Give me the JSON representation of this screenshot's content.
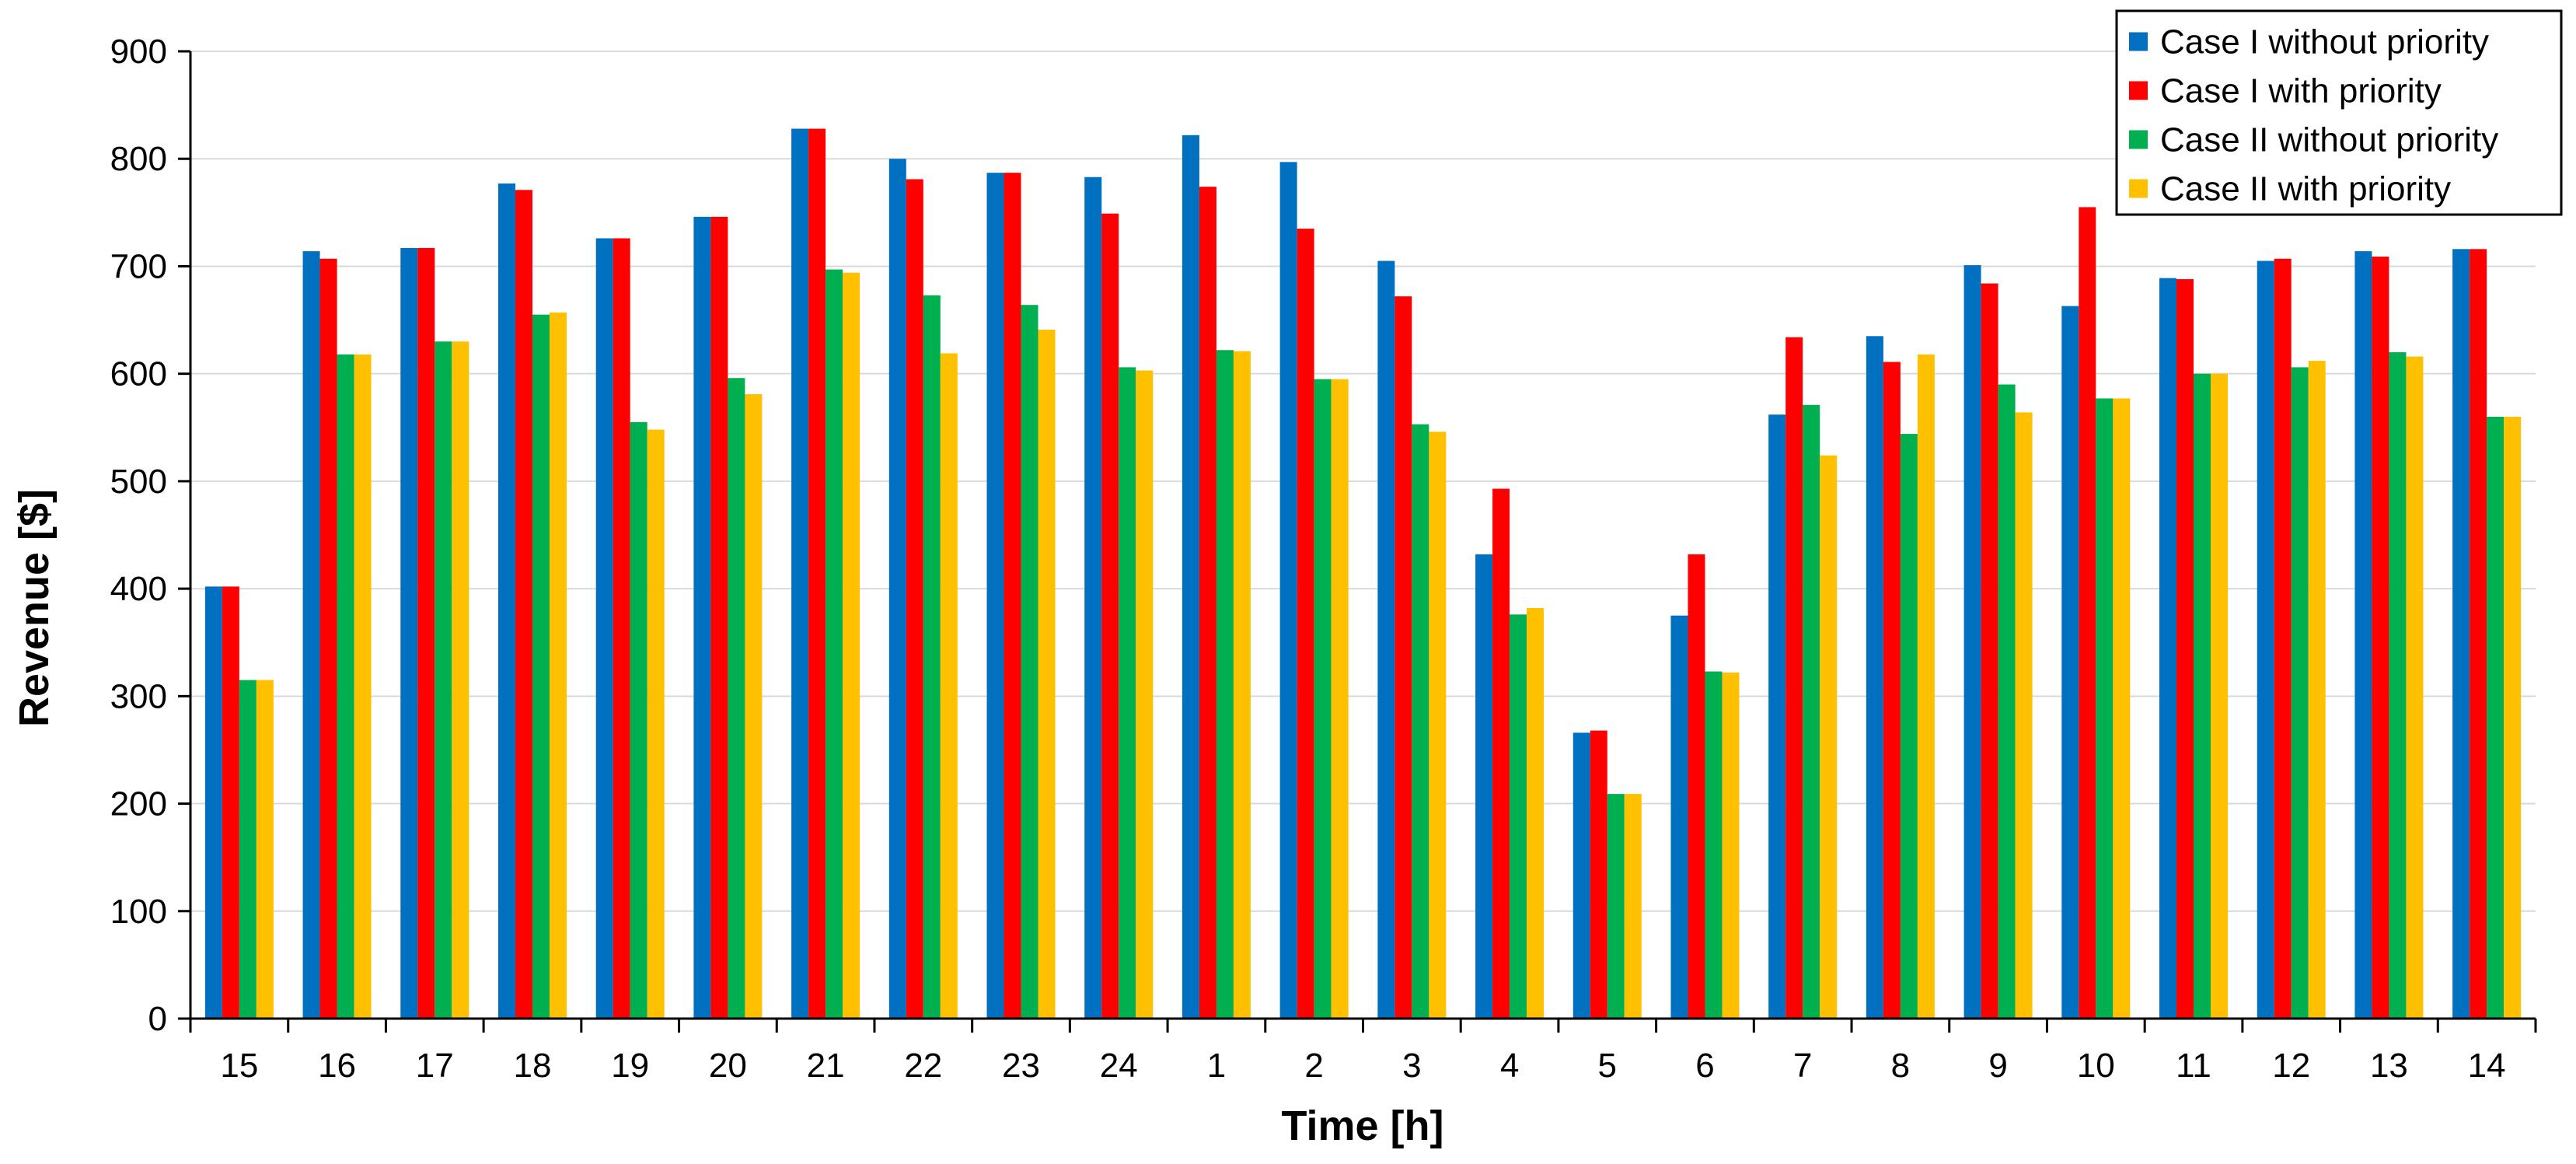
{
  "chart_data": {
    "type": "bar",
    "title": "",
    "xlabel": "Time [h]",
    "ylabel": "Revenue [$]",
    "ylim": [
      0,
      900
    ],
    "yticks": [
      0,
      100,
      200,
      300,
      400,
      500,
      600,
      700,
      800,
      900
    ],
    "grid": true,
    "legend_position": "top-right",
    "categories": [
      "15",
      "16",
      "17",
      "18",
      "19",
      "20",
      "21",
      "22",
      "23",
      "24",
      "1",
      "2",
      "3",
      "4",
      "5",
      "6",
      "7",
      "8",
      "9",
      "10",
      "11",
      "12",
      "13",
      "14"
    ],
    "series": [
      {
        "name": "Case I without priority",
        "color": "#0070C0",
        "values": [
          402,
          714,
          717,
          777,
          726,
          746,
          828,
          800,
          787,
          783,
          822,
          797,
          705,
          432,
          266,
          375,
          562,
          635,
          701,
          663,
          689,
          705,
          714,
          716
        ]
      },
      {
        "name": "Case I with priority",
        "color": "#FF0000",
        "values": [
          402,
          707,
          717,
          771,
          726,
          746,
          828,
          781,
          787,
          749,
          774,
          735,
          672,
          493,
          268,
          432,
          634,
          611,
          684,
          755,
          688,
          707,
          709,
          716
        ]
      },
      {
        "name": "Case II without priority",
        "color": "#00B050",
        "values": [
          315,
          618,
          630,
          655,
          555,
          596,
          697,
          673,
          664,
          606,
          622,
          595,
          553,
          376,
          209,
          323,
          571,
          544,
          590,
          577,
          600,
          606,
          620,
          560
        ]
      },
      {
        "name": "Case II with priority",
        "color": "#FFC000",
        "values": [
          315,
          618,
          630,
          657,
          548,
          581,
          694,
          619,
          641,
          603,
          621,
          595,
          546,
          382,
          209,
          322,
          524,
          618,
          564,
          577,
          600,
          612,
          616,
          560
        ]
      }
    ]
  }
}
